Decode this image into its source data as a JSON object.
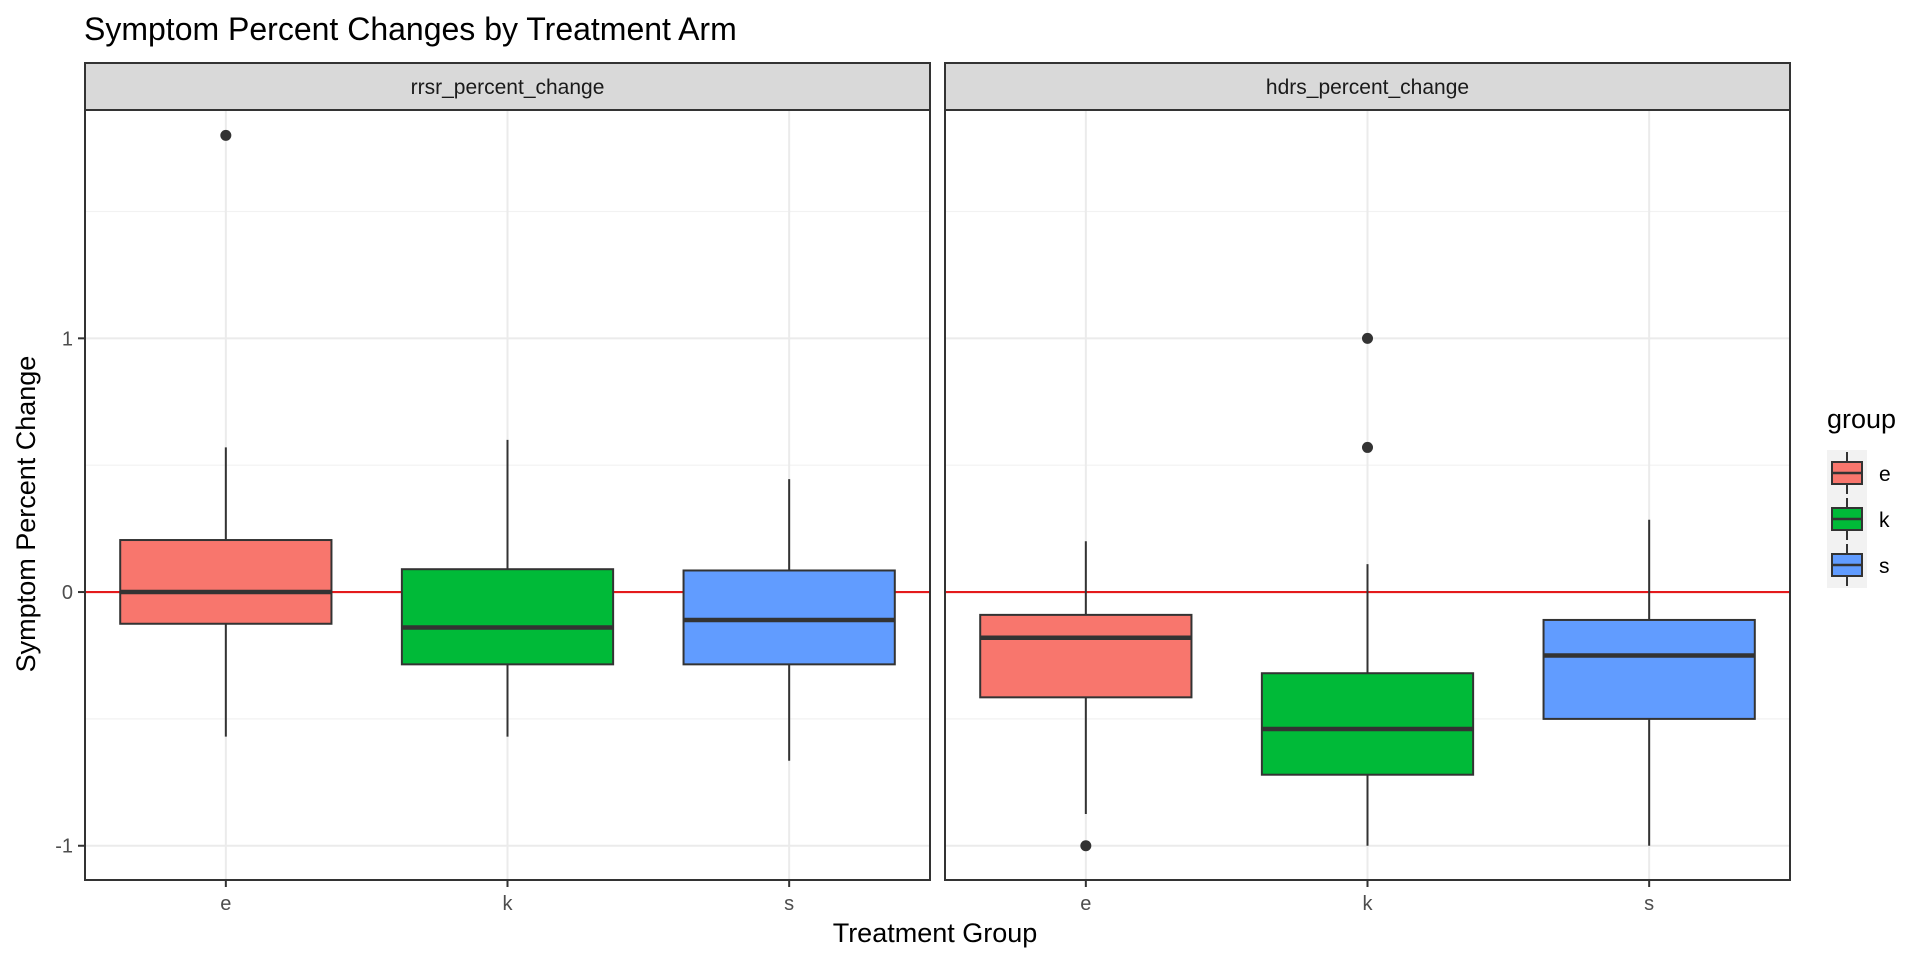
{
  "chart_data": {
    "type": "boxplot",
    "title": "Symptom Percent Changes by Treatment Arm",
    "xlabel": "Treatment Group",
    "ylabel": "Symptom Percent Change",
    "ylim": [
      -1.135,
      1.9
    ],
    "y_ticks": [
      -1,
      0,
      1
    ],
    "y_tick_labels": [
      "-1",
      "0",
      "1"
    ],
    "categories": [
      "e",
      "k",
      "s"
    ],
    "reference_line": {
      "y": 0,
      "color": "#e41a1c"
    },
    "grid": true,
    "legend": {
      "title": "group",
      "position": "right",
      "entries": [
        {
          "label": "e",
          "color": "#F8766D"
        },
        {
          "label": "k",
          "color": "#00BA38"
        },
        {
          "label": "s",
          "color": "#619CFF"
        }
      ]
    },
    "facets": [
      {
        "label": "rrsr_percent_change",
        "boxes": [
          {
            "group": "e",
            "color": "#F8766D",
            "whisker_low": -0.57,
            "q1": -0.125,
            "median": 0.0,
            "q3": 0.205,
            "whisker_high": 0.57,
            "outliers": [
              1.8
            ]
          },
          {
            "group": "k",
            "color": "#00BA38",
            "whisker_low": -0.57,
            "q1": -0.285,
            "median": -0.14,
            "q3": 0.09,
            "whisker_high": 0.6,
            "outliers": []
          },
          {
            "group": "s",
            "color": "#619CFF",
            "whisker_low": -0.665,
            "q1": -0.285,
            "median": -0.11,
            "q3": 0.085,
            "whisker_high": 0.445,
            "outliers": []
          }
        ]
      },
      {
        "label": "hdrs_percent_change",
        "boxes": [
          {
            "group": "e",
            "color": "#F8766D",
            "whisker_low": -0.875,
            "q1": -0.415,
            "median": -0.18,
            "q3": -0.09,
            "whisker_high": 0.2,
            "outliers": [
              -1.0
            ]
          },
          {
            "group": "k",
            "color": "#00BA38",
            "whisker_low": -1.0,
            "q1": -0.72,
            "median": -0.54,
            "q3": -0.32,
            "whisker_high": 0.11,
            "outliers": [
              1.0,
              0.57
            ]
          },
          {
            "group": "s",
            "color": "#619CFF",
            "whisker_low": -1.0,
            "q1": -0.5,
            "median": -0.25,
            "q3": -0.11,
            "whisker_high": 0.285,
            "outliers": []
          }
        ]
      }
    ]
  }
}
